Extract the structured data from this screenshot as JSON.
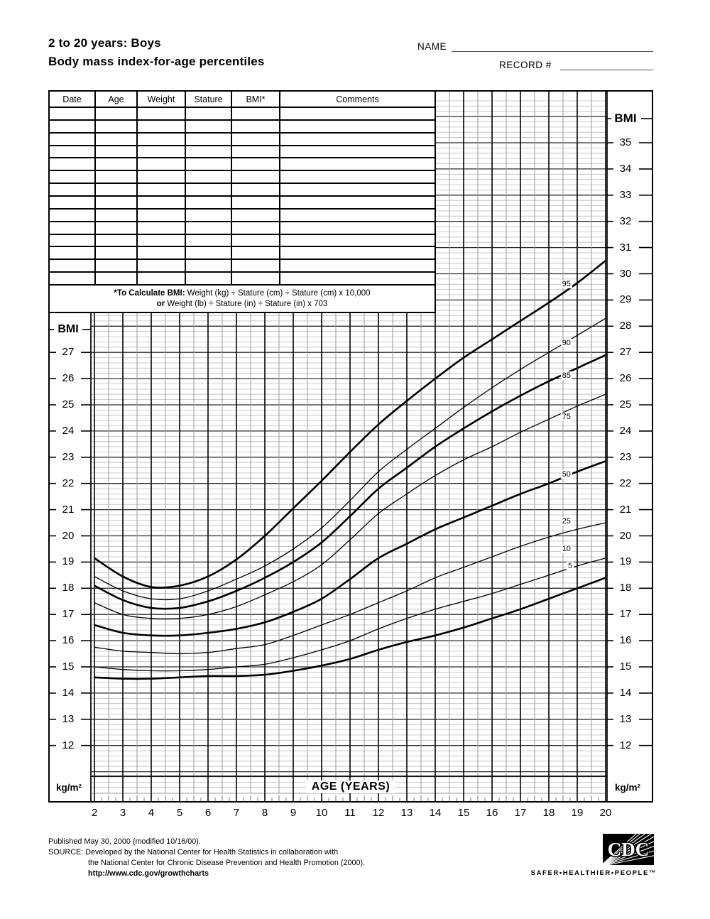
{
  "header": {
    "title_line1": "2 to 20 years: Boys",
    "title_line2": "Body mass index-for-age percentiles",
    "name_label": "NAME",
    "record_label": "RECORD #"
  },
  "table": {
    "headers": [
      "Date",
      "Age",
      "Weight",
      "Stature",
      "BMI*",
      "Comments"
    ],
    "empty_rows": 14
  },
  "note": {
    "line1_bold": "*To Calculate BMI:",
    "line1_rest": " Weight (kg) ÷ Stature (cm) ÷ Stature (cm) x 10,000",
    "line2_bold": "or",
    "line2_rest": " Weight (lb) ÷ Stature (in) ÷ Stature (in) x 703"
  },
  "chart_data": {
    "type": "line",
    "title": "Body mass index-for-age percentiles, boys 2 to 20 years",
    "xlabel": "AGE (YEARS)",
    "ylabel_left": "BMI",
    "ylabel_right": "BMI",
    "unit_label": "kg/m²",
    "x_range": [
      2,
      20
    ],
    "x_major_step": 1,
    "x_minor_step": 0.5,
    "y_range": [
      10.8,
      37.1
    ],
    "y_major_step": 1,
    "y_minor_step": 0.2,
    "grid": true,
    "right_axis_ticks": [
      "35",
      "34",
      "33",
      "32",
      "31",
      "30",
      "29",
      "28",
      "27",
      "26",
      "25",
      "24",
      "23",
      "22",
      "21",
      "20",
      "19",
      "18",
      "17",
      "16",
      "15",
      "14",
      "13",
      "12"
    ],
    "left_axis_ticks": [
      "27",
      "26",
      "25",
      "24",
      "23",
      "22",
      "21",
      "20",
      "19",
      "18",
      "17",
      "16",
      "15",
      "14",
      "13",
      "12"
    ],
    "age_ticks": [
      "2",
      "3",
      "4",
      "5",
      "6",
      "7",
      "8",
      "9",
      "10",
      "11",
      "12",
      "13",
      "14",
      "15",
      "16",
      "17",
      "18",
      "19",
      "20"
    ],
    "x": [
      2,
      3,
      4,
      5,
      6,
      7,
      8,
      9,
      10,
      11,
      12,
      13,
      14,
      15,
      16,
      17,
      18,
      19,
      20
    ],
    "series": [
      {
        "name": "95",
        "emphasis": true,
        "values": [
          19.15,
          18.45,
          18.05,
          18.1,
          18.45,
          19.1,
          20.0,
          21.05,
          22.1,
          23.2,
          24.25,
          25.15,
          26.0,
          26.8,
          27.5,
          28.2,
          28.9,
          29.65,
          30.5
        ]
      },
      {
        "name": "90",
        "emphasis": false,
        "values": [
          18.45,
          17.9,
          17.6,
          17.6,
          17.9,
          18.35,
          18.85,
          19.5,
          20.3,
          21.35,
          22.45,
          23.3,
          24.1,
          24.9,
          25.65,
          26.35,
          27.0,
          27.65,
          28.3
        ]
      },
      {
        "name": "85",
        "emphasis": true,
        "values": [
          18.1,
          17.55,
          17.25,
          17.25,
          17.5,
          17.9,
          18.4,
          19.0,
          19.75,
          20.75,
          21.8,
          22.6,
          23.4,
          24.1,
          24.75,
          25.35,
          25.9,
          26.4,
          26.9
        ]
      },
      {
        "name": "75",
        "emphasis": false,
        "values": [
          17.45,
          17.0,
          16.85,
          16.85,
          17.0,
          17.3,
          17.75,
          18.25,
          18.9,
          19.85,
          20.85,
          21.6,
          22.3,
          22.9,
          23.4,
          23.95,
          24.45,
          24.95,
          25.4
        ]
      },
      {
        "name": "50",
        "emphasis": true,
        "values": [
          16.6,
          16.3,
          16.2,
          16.2,
          16.3,
          16.45,
          16.7,
          17.1,
          17.6,
          18.35,
          19.15,
          19.7,
          20.25,
          20.7,
          21.15,
          21.6,
          22.0,
          22.45,
          22.85
        ]
      },
      {
        "name": "25",
        "emphasis": false,
        "values": [
          15.75,
          15.6,
          15.55,
          15.5,
          15.55,
          15.7,
          15.85,
          16.2,
          16.6,
          17.0,
          17.45,
          17.9,
          18.4,
          18.8,
          19.2,
          19.6,
          19.95,
          20.25,
          20.5
        ]
      },
      {
        "name": "10",
        "emphasis": false,
        "values": [
          15.0,
          14.9,
          14.85,
          14.85,
          14.9,
          15.0,
          15.1,
          15.35,
          15.65,
          16.0,
          16.45,
          16.85,
          17.2,
          17.5,
          17.8,
          18.15,
          18.5,
          18.85,
          19.15
        ]
      },
      {
        "name": "5",
        "emphasis": true,
        "values": [
          14.6,
          14.55,
          14.55,
          14.6,
          14.65,
          14.65,
          14.7,
          14.85,
          15.05,
          15.3,
          15.65,
          15.95,
          16.2,
          16.5,
          16.85,
          17.2,
          17.6,
          18.0,
          18.4
        ]
      }
    ],
    "annotations": [
      {
        "label": "95",
        "age": 18.62,
        "bmi": 29.6
      },
      {
        "label": "90",
        "age": 18.62,
        "bmi": 27.35
      },
      {
        "label": "85",
        "age": 18.62,
        "bmi": 26.1
      },
      {
        "label": "75",
        "age": 18.62,
        "bmi": 24.55
      },
      {
        "label": "50",
        "age": 18.62,
        "bmi": 22.35
      },
      {
        "label": "25",
        "age": 18.62,
        "bmi": 20.55
      },
      {
        "label": "10",
        "age": 18.62,
        "bmi": 19.5
      },
      {
        "label": "5",
        "age": 18.75,
        "bmi": 18.85
      }
    ],
    "colors": {
      "curve": "#000000",
      "grid_major_h": "#2b2b2b",
      "grid_minor_h": "#bdbdbd",
      "grid_major_v": "#111111",
      "grid_minor_v": "#9a9a9a"
    }
  },
  "footer": {
    "line1": "Published May 30, 2000 (modified 10/16/00).",
    "line2": "SOURCE: Developed by the National Center for Health Statistics in collaboration with",
    "line3": "the National Center for Chronic Disease Prevention and Health Promotion (2000).",
    "line4": "http://www.cdc.gov/growthcharts",
    "cdc_logo_text": "CDC",
    "tagline": "SAFER•HEALTHIER•PEOPLE™"
  }
}
